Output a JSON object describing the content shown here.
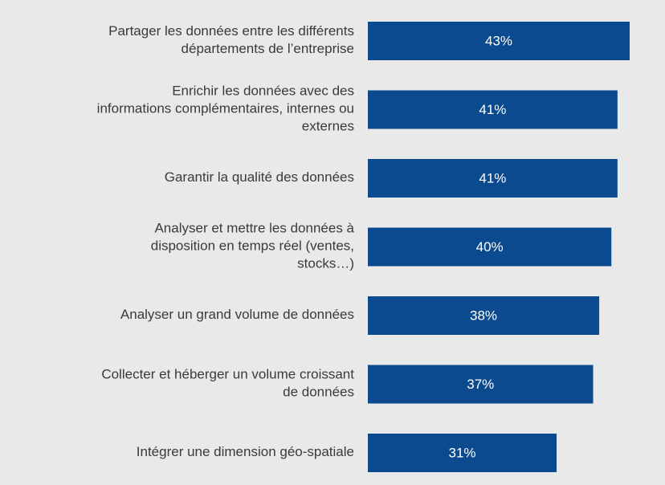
{
  "chart_data": {
    "type": "bar",
    "orientation": "horizontal",
    "categories": [
      "Partager les données entre les différents\ndépartements de l’entreprise",
      "Enrichir les données avec des\ninformations complémentaires, internes ou\nexternes",
      "Garantir la qualité des données",
      "Analyser et mettre les données à\ndisposition en temps réel (ventes,\nstocks…)",
      "Analyser un grand volume de données",
      "Collecter et héberger un volume croissant\nde données",
      "Intégrer une dimension géo-spatiale"
    ],
    "values": [
      43,
      41,
      41,
      40,
      38,
      37,
      31
    ],
    "value_labels": [
      "43%",
      "41%",
      "41%",
      "40%",
      "38%",
      "37%",
      "31%"
    ],
    "color": "#0b4a8e"
  }
}
